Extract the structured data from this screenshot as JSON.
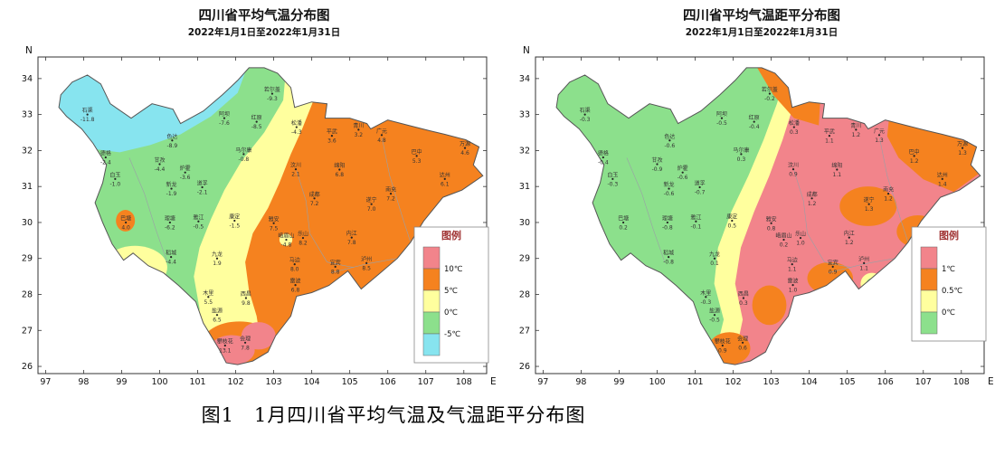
{
  "caption": "图1　1月四川省平均气温及气温距平分布图",
  "axes": {
    "north_label": "N",
    "east_label": "E",
    "lon_ticks": [
      97,
      98,
      99,
      100,
      101,
      102,
      103,
      104,
      105,
      106,
      107,
      108
    ],
    "lat_ticks": [
      26,
      27,
      28,
      29,
      30,
      31,
      32,
      33,
      34
    ]
  },
  "left_map": {
    "title": "四川省平均气温分布图",
    "subtitle": "2022年1月1日至2022年1月31日",
    "legend": {
      "title": "图例",
      "colors": [
        "#f2848b",
        "#f5821f",
        "#ffff9e",
        "#8ce08c",
        "#87e4ef"
      ],
      "labels": [
        "10℃",
        "5℃",
        "0℃",
        "-5℃"
      ]
    },
    "stations": [
      {
        "name": "石渠",
        "value": "-11.8",
        "lon": 98.1,
        "lat": 33.0
      },
      {
        "name": "色达",
        "value": "-8.9",
        "lon": 100.33,
        "lat": 32.28
      },
      {
        "name": "若尔盖",
        "value": "-9.3",
        "lon": 102.96,
        "lat": 33.58
      },
      {
        "name": "红原",
        "value": "-8.5",
        "lon": 102.55,
        "lat": 32.8
      },
      {
        "name": "阿坝",
        "value": "-7.6",
        "lon": 101.7,
        "lat": 32.9
      },
      {
        "name": "松潘",
        "value": "-4.3",
        "lon": 103.6,
        "lat": 32.65
      },
      {
        "name": "马尔康",
        "value": "-0.8",
        "lon": 102.21,
        "lat": 31.9
      },
      {
        "name": "汶川",
        "value": "2.1",
        "lon": 103.58,
        "lat": 31.48
      },
      {
        "name": "平武",
        "value": "3.6",
        "lon": 104.53,
        "lat": 32.41
      },
      {
        "name": "青川",
        "value": "3.2",
        "lon": 105.23,
        "lat": 32.58
      },
      {
        "name": "广元",
        "value": "4.8",
        "lon": 105.84,
        "lat": 32.43
      },
      {
        "name": "巴中",
        "value": "5.3",
        "lon": 106.76,
        "lat": 31.85
      },
      {
        "name": "万源",
        "value": "4.6",
        "lon": 108.03,
        "lat": 32.07
      },
      {
        "name": "达州",
        "value": "6.1",
        "lon": 107.5,
        "lat": 31.21
      },
      {
        "name": "甘孜",
        "value": "-4.4",
        "lon": 100.0,
        "lat": 31.62
      },
      {
        "name": "炉霍",
        "value": "-3.6",
        "lon": 100.67,
        "lat": 31.39
      },
      {
        "name": "道孚",
        "value": "-2.1",
        "lon": 101.12,
        "lat": 30.98
      },
      {
        "name": "新龙",
        "value": "-1.9",
        "lon": 100.31,
        "lat": 30.94
      },
      {
        "name": "德格",
        "value": "-2.4",
        "lon": 98.58,
        "lat": 31.81
      },
      {
        "name": "白玉",
        "value": "-1.0",
        "lon": 98.83,
        "lat": 31.21
      },
      {
        "name": "巴塘",
        "value": "4.0",
        "lon": 99.11,
        "lat": 30.0
      },
      {
        "name": "理塘",
        "value": "-6.2",
        "lon": 100.27,
        "lat": 30.0
      },
      {
        "name": "雅江",
        "value": "-0.5",
        "lon": 101.02,
        "lat": 30.03
      },
      {
        "name": "康定",
        "value": "-1.5",
        "lon": 101.97,
        "lat": 30.05
      },
      {
        "name": "稻城",
        "value": "-4.4",
        "lon": 100.3,
        "lat": 29.04
      },
      {
        "name": "九龙",
        "value": "1.9",
        "lon": 101.51,
        "lat": 29.0
      },
      {
        "name": "木里",
        "value": "5.5",
        "lon": 101.28,
        "lat": 27.93
      },
      {
        "name": "盐源",
        "value": "6.5",
        "lon": 101.51,
        "lat": 27.43
      },
      {
        "name": "西昌",
        "value": "9.8",
        "lon": 102.27,
        "lat": 27.9
      },
      {
        "name": "会理",
        "value": "7.8",
        "lon": 102.25,
        "lat": 26.66
      },
      {
        "name": "攀枝花",
        "value": "13.1",
        "lon": 101.72,
        "lat": 26.58
      },
      {
        "name": "雷波",
        "value": "6.8",
        "lon": 103.57,
        "lat": 28.26
      },
      {
        "name": "马边",
        "value": "8.0",
        "lon": 103.55,
        "lat": 28.84
      },
      {
        "name": "峨眉山",
        "value": "-4.8",
        "lon": 103.33,
        "lat": 29.52
      },
      {
        "name": "雅安",
        "value": "7.5",
        "lon": 103.0,
        "lat": 29.98
      },
      {
        "name": "乐山",
        "value": "8.2",
        "lon": 103.77,
        "lat": 29.57
      },
      {
        "name": "成都",
        "value": "7.2",
        "lon": 104.07,
        "lat": 30.67
      },
      {
        "name": "绵阳",
        "value": "6.8",
        "lon": 104.73,
        "lat": 31.47
      },
      {
        "name": "遂宁",
        "value": "7.0",
        "lon": 105.57,
        "lat": 30.51
      },
      {
        "name": "南充",
        "value": "7.2",
        "lon": 106.08,
        "lat": 30.8
      },
      {
        "name": "内江",
        "value": "7.8",
        "lon": 105.05,
        "lat": 29.58
      },
      {
        "name": "泸州",
        "value": "8.5",
        "lon": 105.44,
        "lat": 28.87
      },
      {
        "name": "宜宾",
        "value": "8.8",
        "lon": 104.62,
        "lat": 28.77
      }
    ]
  },
  "right_map": {
    "title": "四川省平均气温距平分布图",
    "subtitle": "2022年1月1日至2022年1月31日",
    "legend": {
      "title": "图例",
      "colors": [
        "#f2848b",
        "#f5821f",
        "#ffff9e",
        "#8ce08c"
      ],
      "labels": [
        "1℃",
        "0.5℃",
        "0℃"
      ]
    },
    "stations": [
      {
        "name": "石渠",
        "value": "-0.3",
        "lon": 98.1,
        "lat": 33.0
      },
      {
        "name": "色达",
        "value": "-0.6",
        "lon": 100.33,
        "lat": 32.28
      },
      {
        "name": "若尔盖",
        "value": "-0.2",
        "lon": 102.96,
        "lat": 33.58
      },
      {
        "name": "红原",
        "value": "-0.4",
        "lon": 102.55,
        "lat": 32.8
      },
      {
        "name": "阿坝",
        "value": "-0.5",
        "lon": 101.7,
        "lat": 32.9
      },
      {
        "name": "松潘",
        "value": "0.3",
        "lon": 103.6,
        "lat": 32.65
      },
      {
        "name": "马尔康",
        "value": "0.3",
        "lon": 102.21,
        "lat": 31.9
      },
      {
        "name": "汶川",
        "value": "0.9",
        "lon": 103.58,
        "lat": 31.48
      },
      {
        "name": "平武",
        "value": "1.1",
        "lon": 104.53,
        "lat": 32.41
      },
      {
        "name": "青川",
        "value": "1.2",
        "lon": 105.23,
        "lat": 32.58
      },
      {
        "name": "广元",
        "value": "1.3",
        "lon": 105.84,
        "lat": 32.43
      },
      {
        "name": "巴中",
        "value": "1.2",
        "lon": 106.76,
        "lat": 31.85
      },
      {
        "name": "万源",
        "value": "1.3",
        "lon": 108.03,
        "lat": 32.07
      },
      {
        "name": "达州",
        "value": "1.4",
        "lon": 107.5,
        "lat": 31.21
      },
      {
        "name": "甘孜",
        "value": "-0.9",
        "lon": 100.0,
        "lat": 31.62
      },
      {
        "name": "炉霍",
        "value": "-0.6",
        "lon": 100.67,
        "lat": 31.39
      },
      {
        "name": "道孚",
        "value": "-0.7",
        "lon": 101.12,
        "lat": 30.98
      },
      {
        "name": "新龙",
        "value": "-0.6",
        "lon": 100.31,
        "lat": 30.94
      },
      {
        "name": "德格",
        "value": "-0.4",
        "lon": 98.58,
        "lat": 31.81
      },
      {
        "name": "白玉",
        "value": "-0.3",
        "lon": 98.83,
        "lat": 31.21
      },
      {
        "name": "巴塘",
        "value": "0.2",
        "lon": 99.11,
        "lat": 30.0
      },
      {
        "name": "理塘",
        "value": "-0.8",
        "lon": 100.27,
        "lat": 30.0
      },
      {
        "name": "雅江",
        "value": "-0.1",
        "lon": 101.02,
        "lat": 30.03
      },
      {
        "name": "康定",
        "value": "0.5",
        "lon": 101.97,
        "lat": 30.05
      },
      {
        "name": "稻城",
        "value": "-0.8",
        "lon": 100.3,
        "lat": 29.04
      },
      {
        "name": "九龙",
        "value": "0.1",
        "lon": 101.51,
        "lat": 29.0
      },
      {
        "name": "木里",
        "value": "-0.3",
        "lon": 101.28,
        "lat": 27.93
      },
      {
        "name": "盐源",
        "value": "-0.5",
        "lon": 101.51,
        "lat": 27.43
      },
      {
        "name": "西昌",
        "value": "0.3",
        "lon": 102.27,
        "lat": 27.9
      },
      {
        "name": "会理",
        "value": "0.6",
        "lon": 102.25,
        "lat": 26.66
      },
      {
        "name": "攀枝花",
        "value": "0.9",
        "lon": 101.72,
        "lat": 26.58
      },
      {
        "name": "雷波",
        "value": "1.0",
        "lon": 103.57,
        "lat": 28.26
      },
      {
        "name": "马边",
        "value": "1.1",
        "lon": 103.55,
        "lat": 28.84
      },
      {
        "name": "峨眉山",
        "value": "0.2",
        "lon": 103.33,
        "lat": 29.52
      },
      {
        "name": "雅安",
        "value": "0.8",
        "lon": 103.0,
        "lat": 29.98
      },
      {
        "name": "乐山",
        "value": "1.0",
        "lon": 103.77,
        "lat": 29.57
      },
      {
        "name": "成都",
        "value": "1.2",
        "lon": 104.07,
        "lat": 30.67
      },
      {
        "name": "绵阳",
        "value": "1.1",
        "lon": 104.73,
        "lat": 31.47
      },
      {
        "name": "遂宁",
        "value": "1.3",
        "lon": 105.57,
        "lat": 30.51
      },
      {
        "name": "南充",
        "value": "1.2",
        "lon": 106.08,
        "lat": 30.8
      },
      {
        "name": "内江",
        "value": "1.2",
        "lon": 105.05,
        "lat": 29.58
      },
      {
        "name": "泸州",
        "value": "1.1",
        "lon": 105.44,
        "lat": 28.87
      },
      {
        "name": "宜宾",
        "value": "0.9",
        "lon": 104.62,
        "lat": 28.77
      }
    ]
  }
}
